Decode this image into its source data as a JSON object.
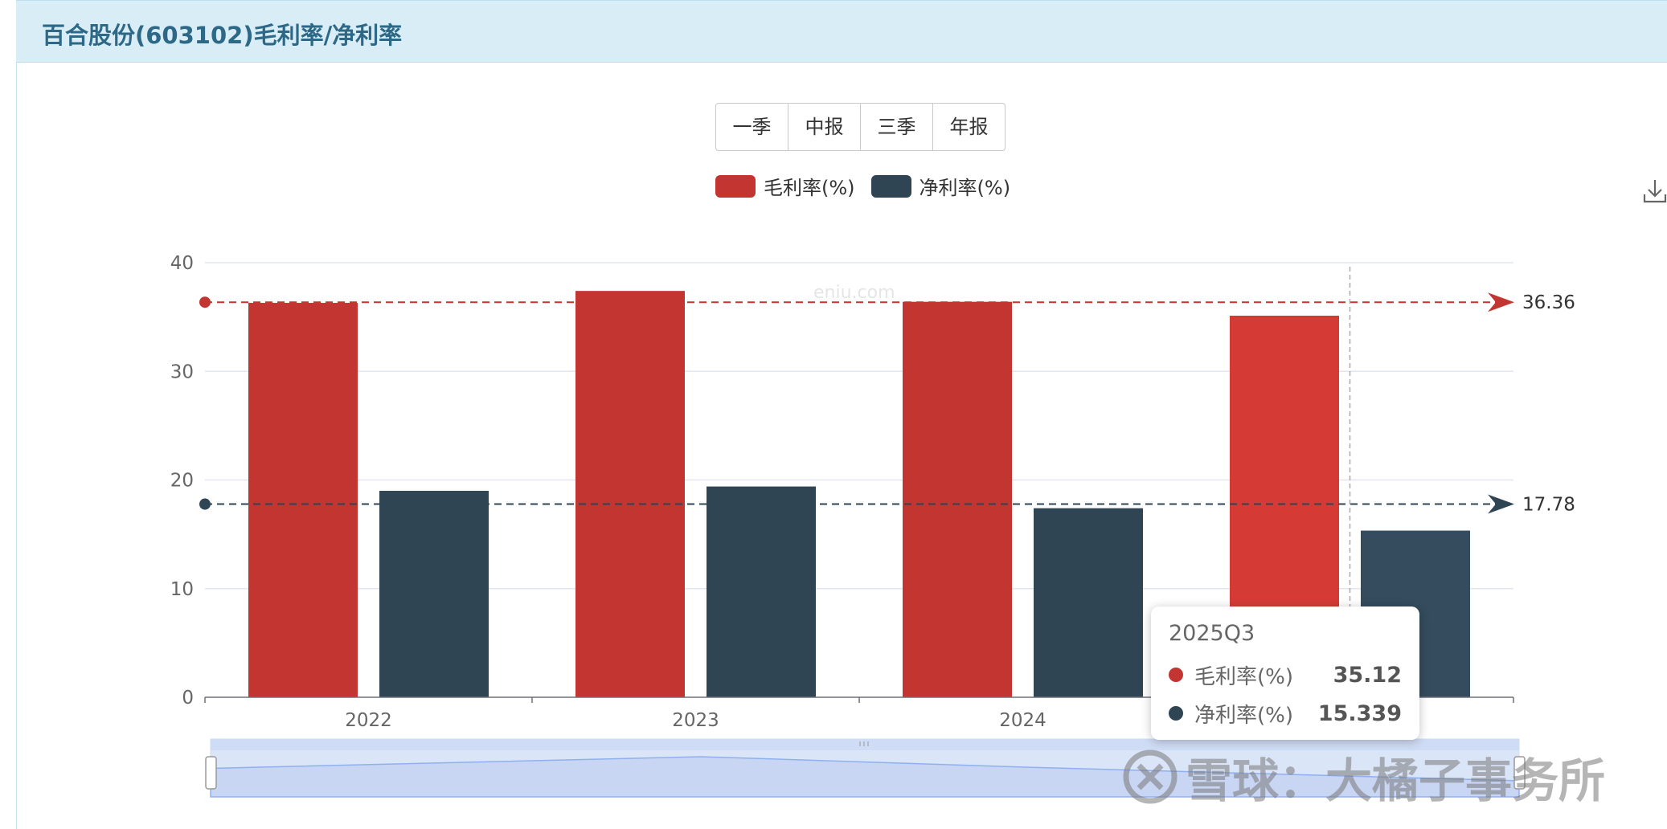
{
  "header": {
    "title": "百合股份(603102)毛利率/净利率"
  },
  "period_buttons": [
    {
      "label": "一季"
    },
    {
      "label": "中报"
    },
    {
      "label": "三季"
    },
    {
      "label": "年报"
    }
  ],
  "legend": [
    {
      "label": "毛利率(%)",
      "color": "#c23531"
    },
    {
      "label": "净利率(%)",
      "color": "#2f4554"
    }
  ],
  "icons": {
    "download": "download-icon"
  },
  "site_mark": "eniu.com",
  "tooltip": {
    "title": "2025Q3",
    "rows": [
      {
        "name": "毛利率(%)",
        "value": "35.12",
        "color": "#c23531"
      },
      {
        "name": "净利率(%)",
        "value": "15.339",
        "color": "#2f4554"
      }
    ]
  },
  "watermark": {
    "text": "雪球：大橘子事务所"
  },
  "chart_data": {
    "type": "bar",
    "categories": [
      "2022",
      "2023",
      "2024",
      "2025Q3"
    ],
    "series": [
      {
        "name": "毛利率(%)",
        "values": [
          36.3,
          37.4,
          36.4,
          35.12
        ],
        "color": "#c23531"
      },
      {
        "name": "净利率(%)",
        "values": [
          19.0,
          19.4,
          17.4,
          15.339
        ],
        "color": "#2f4554"
      }
    ],
    "ylim": [
      0,
      40
    ],
    "yticks": [
      0,
      10,
      20,
      30,
      40
    ],
    "xtick_labels": [
      "2022",
      "2023",
      "2024"
    ],
    "mark_lines": [
      {
        "series": "毛利率(%)",
        "value": 36.36,
        "label": "36.36",
        "color": "#c23531"
      },
      {
        "series": "净利率(%)",
        "value": 17.78,
        "label": "17.78",
        "color": "#2f4554"
      }
    ],
    "highlighted_category": "2025Q3",
    "grid": true,
    "legend_position": "top-center"
  }
}
